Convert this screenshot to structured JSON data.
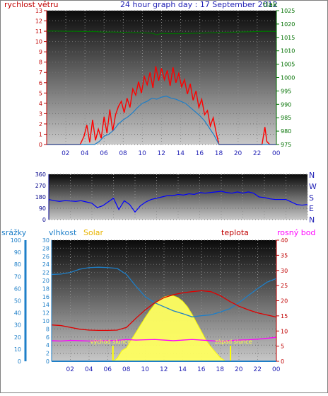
{
  "header": {
    "wind_label": "rychlost větru",
    "title": "24 hour graph day : 17 September 2012",
    "pressure_label": "tlak"
  },
  "colors": {
    "wind_gust": "#ff0000",
    "wind_avg": "#1e7fc8",
    "pressure": "#007000",
    "direction": "#0000ff",
    "humidity": "#1e7fc8",
    "solar": "#ffff60",
    "temperature": "#e00000",
    "dewpoint": "#ff00ff",
    "rain": "#1e7fc8",
    "sun_marker": "#ffff00",
    "axis_left": "#c00000",
    "axis_right_top": "#007000",
    "axis_dir": "#00008b",
    "axis_rain": "#1e7fc8",
    "axis_temp": "#c00000"
  },
  "chart_data": [
    {
      "type": "line",
      "name": "wind-pressure",
      "x_ticks": [
        "02",
        "04",
        "06",
        "08",
        "10",
        "12",
        "14",
        "16",
        "18",
        "20",
        "22",
        "00"
      ],
      "ylim_left": [
        0,
        13
      ],
      "yticks_left": [
        "0",
        "1",
        "2",
        "3",
        "4",
        "5",
        "6",
        "7",
        "8",
        "9",
        "10",
        "11",
        "12",
        "13"
      ],
      "ylim_right": [
        975,
        1025
      ],
      "yticks_right": [
        "975",
        "980",
        "985",
        "990",
        "995",
        "1000",
        "1005",
        "1010",
        "1015",
        "1020",
        "1025"
      ],
      "series": [
        {
          "key": "wind_gust",
          "axis": "left",
          "x": [
            0,
            3.5,
            3.9,
            4.2,
            4.5,
            4.8,
            5.1,
            5.4,
            5.7,
            6.0,
            6.3,
            6.6,
            6.9,
            7.2,
            7.5,
            7.8,
            8.1,
            8.4,
            8.7,
            9.0,
            9.3,
            9.6,
            9.9,
            10.2,
            10.5,
            10.8,
            11.1,
            11.4,
            11.7,
            12.0,
            12.3,
            12.6,
            12.9,
            13.2,
            13.5,
            13.8,
            14.1,
            14.4,
            14.7,
            15.0,
            15.3,
            15.6,
            15.9,
            16.2,
            16.5,
            16.8,
            17.1,
            17.4,
            17.7,
            18.0,
            18.3,
            22.5,
            22.8,
            23.0,
            23.3,
            24
          ],
          "y": [
            0,
            0,
            0.8,
            1.9,
            0.2,
            2.4,
            0.4,
            1.5,
            0.6,
            2.7,
            1.1,
            3.4,
            1.3,
            2.9,
            3.7,
            4.2,
            3.1,
            4.5,
            3.6,
            5.4,
            4.8,
            6.1,
            5.0,
            6.6,
            5.8,
            7.0,
            5.5,
            7.6,
            6.2,
            7.4,
            6.3,
            7.2,
            5.7,
            7.5,
            6.0,
            6.9,
            5.6,
            6.3,
            4.9,
            5.9,
            4.3,
            5.2,
            3.6,
            4.4,
            2.9,
            3.3,
            1.8,
            2.6,
            1.2,
            0,
            0,
            0,
            1.7,
            0.3,
            0,
            0
          ]
        },
        {
          "key": "wind_avg",
          "axis": "left",
          "x": [
            0,
            5.0,
            5.5,
            6.0,
            6.5,
            7.0,
            7.5,
            8.0,
            8.5,
            9.0,
            9.5,
            10.0,
            10.5,
            11.0,
            11.5,
            12.0,
            12.5,
            13.0,
            13.5,
            14.0,
            14.5,
            15.0,
            15.5,
            16.0,
            16.5,
            17.0,
            17.5,
            18.0,
            24
          ],
          "y": [
            0,
            0,
            0.3,
            0.8,
            1.0,
            1.4,
            2.0,
            2.4,
            2.7,
            3.1,
            3.6,
            4.0,
            4.2,
            4.5,
            4.4,
            4.6,
            4.7,
            4.5,
            4.4,
            4.2,
            4.0,
            3.6,
            3.2,
            2.8,
            2.3,
            1.6,
            0.9,
            0,
            0
          ]
        },
        {
          "key": "pressure",
          "axis": "right",
          "x": [
            0,
            1,
            2,
            3,
            4,
            5,
            6,
            7,
            8,
            9,
            10,
            11,
            11.5,
            12,
            13,
            14,
            15,
            16,
            17,
            18,
            19,
            20,
            21,
            22,
            23,
            24
          ],
          "y": [
            1017.4,
            1017.4,
            1017.3,
            1017.3,
            1017.2,
            1017.2,
            1017.0,
            1017.0,
            1016.9,
            1016.8,
            1016.7,
            1016.6,
            1016.0,
            1016.5,
            1016.4,
            1016.4,
            1016.5,
            1016.6,
            1016.7,
            1016.8,
            1016.9,
            1017.0,
            1017.1,
            1017.2,
            1017.3,
            1017.2
          ]
        }
      ]
    },
    {
      "type": "line",
      "name": "wind-direction",
      "ylim": [
        0,
        360
      ],
      "yticks": [
        "0",
        "90",
        "180",
        "270",
        "360"
      ],
      "compass": [
        "N",
        "W",
        "S",
        "E",
        "N"
      ],
      "series": [
        {
          "key": "direction",
          "x": [
            0,
            0.5,
            1,
            1.5,
            2,
            2.5,
            3,
            3.5,
            4,
            4.5,
            5,
            5.5,
            6,
            6.5,
            7,
            7.5,
            8,
            8.5,
            9,
            9.5,
            10,
            10.5,
            11,
            11.5,
            12,
            12.5,
            13,
            13.5,
            14,
            14.5,
            15,
            15.5,
            16,
            16.5,
            17,
            17.5,
            18,
            18.5,
            19,
            19.5,
            20,
            20.5,
            21,
            21.5,
            22,
            22.5,
            23,
            23.5,
            24
          ],
          "y": [
            160,
            150,
            145,
            150,
            148,
            145,
            150,
            140,
            130,
            95,
            110,
            140,
            170,
            80,
            150,
            120,
            60,
            110,
            140,
            160,
            170,
            180,
            190,
            190,
            200,
            195,
            205,
            200,
            215,
            210,
            215,
            220,
            225,
            215,
            210,
            220,
            210,
            220,
            210,
            180,
            175,
            165,
            160,
            160,
            160,
            140,
            120,
            115,
            120
          ]
        }
      ]
    },
    {
      "type": "line",
      "name": "temperature-humidity-solar",
      "ylim_rain": [
        0,
        100
      ],
      "yticks_rain": [
        "0",
        "10",
        "20",
        "30",
        "40",
        "50",
        "60",
        "70",
        "80",
        "90",
        "100"
      ],
      "ylim_humidity": [
        0,
        30
      ],
      "yticks_humidity": [
        "0",
        "2",
        "4",
        "6",
        "8",
        "10",
        "12",
        "14",
        "16",
        "18",
        "20",
        "22",
        "24",
        "26",
        "28",
        "30"
      ],
      "ylim_temp": [
        0,
        40
      ],
      "yticks_temp": [
        "0",
        "5",
        "10",
        "15",
        "20",
        "25",
        "30",
        "35",
        "40"
      ],
      "legend": {
        "rain": "srážky",
        "humidity": "vlhkost",
        "solar": "Solar",
        "temperature": "teplota",
        "dewpoint": "rosný bod"
      },
      "annotations": {
        "sunrise": "východ slunce",
        "sunset": "západ slunce",
        "sunrise_hour": 6.55,
        "sunset_hour": 19.1
      },
      "series": [
        {
          "key": "humidity",
          "axis": "humidity",
          "x": [
            0,
            1,
            2,
            3,
            4,
            5,
            6,
            7,
            8,
            9,
            10,
            11,
            12,
            13,
            14,
            15,
            16,
            17,
            18,
            19,
            20,
            21,
            22,
            23,
            24
          ],
          "y": [
            21.5,
            21.6,
            22.0,
            22.8,
            23.2,
            23.3,
            23.2,
            23.0,
            21.5,
            18.6,
            16.0,
            14.5,
            13.5,
            12.5,
            11.8,
            11.0,
            11.3,
            11.5,
            12.2,
            13.0,
            14.5,
            16.3,
            18.0,
            19.6,
            20.5
          ]
        },
        {
          "key": "temperature",
          "axis": "temp",
          "x": [
            0,
            1,
            2,
            3,
            4,
            5,
            6,
            7,
            8,
            9,
            10,
            11,
            12,
            13,
            14,
            15,
            16,
            17,
            18,
            19,
            20,
            21,
            22,
            23,
            24
          ],
          "y": [
            12.0,
            11.8,
            11.2,
            10.6,
            10.3,
            10.2,
            10.2,
            10.3,
            11.2,
            14.2,
            17.0,
            19.3,
            21.0,
            22.0,
            22.6,
            23.0,
            23.3,
            23.0,
            21.7,
            19.8,
            18.2,
            17.0,
            16.0,
            15.3,
            14.6
          ]
        },
        {
          "key": "dewpoint",
          "axis": "temp",
          "x": [
            0,
            1,
            2,
            3,
            4,
            5,
            6,
            7,
            8,
            9,
            10,
            11,
            12,
            13,
            14,
            15,
            16,
            17,
            18,
            19,
            20,
            21,
            22,
            23,
            24
          ],
          "y": [
            6.8,
            6.7,
            6.9,
            6.8,
            6.7,
            6.8,
            6.8,
            6.9,
            7.2,
            7.0,
            7.1,
            7.2,
            7.0,
            6.8,
            7.0,
            7.2,
            7.0,
            6.8,
            6.6,
            6.8,
            7.0,
            7.1,
            7.3,
            7.6,
            7.9
          ]
        },
        {
          "key": "solar",
          "axis": "temp",
          "x": [
            6.6,
            7.0,
            7.5,
            8.0,
            8.5,
            9.0,
            9.5,
            10.0,
            10.5,
            11.0,
            11.5,
            12.0,
            12.5,
            13.0,
            13.5,
            14.0,
            14.5,
            15.0,
            15.5,
            16.0,
            16.5,
            17.0,
            17.5,
            18.0,
            18.6
          ],
          "y": [
            0,
            1.0,
            3.5,
            4.5,
            7.0,
            9.5,
            12.0,
            14.5,
            16.8,
            18.8,
            20.2,
            21.2,
            21.6,
            21.6,
            21.0,
            19.8,
            18.0,
            15.5,
            12.6,
            9.8,
            6.9,
            4.8,
            3.0,
            1.2,
            0
          ]
        },
        {
          "key": "rain",
          "axis": "rain",
          "x": [
            0,
            24
          ],
          "y": [
            0,
            0
          ]
        }
      ]
    }
  ]
}
